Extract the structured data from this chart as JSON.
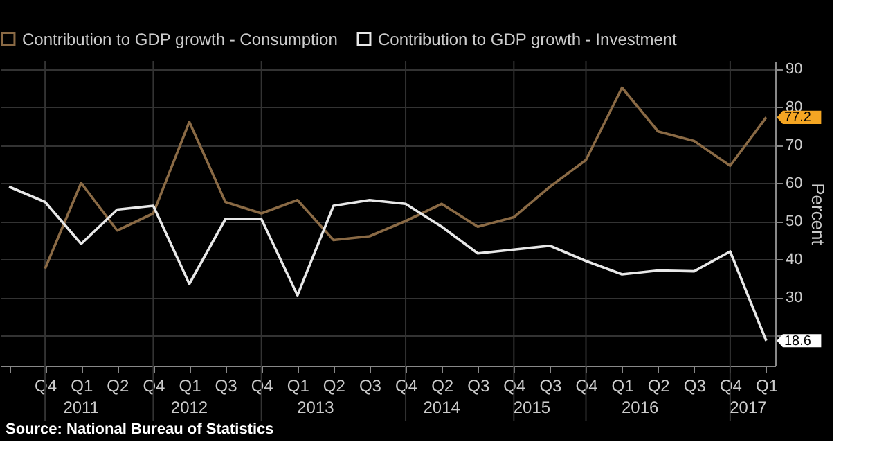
{
  "chart_data": {
    "type": "line",
    "categories": [
      null,
      "Q4",
      "Q1",
      "Q2",
      "Q4",
      "Q1",
      "Q3",
      "Q4",
      "Q1",
      "Q2",
      "Q3",
      "Q4",
      "Q2",
      "Q3",
      "Q4",
      "Q3",
      "Q4",
      "Q1",
      "Q2",
      "Q3",
      "Q4",
      "Q1"
    ],
    "series": [
      {
        "name": "Contribution to GDP growth - Consumption",
        "color": "#8a6a45",
        "values": [
          null,
          37.5,
          60,
          47.5,
          52,
          76,
          55,
          52,
          55.5,
          45,
          46,
          50,
          54.5,
          48.5,
          51,
          59,
          66,
          85,
          73.5,
          71,
          64.5,
          77.2
        ],
        "value_labels": [
          null,
          null,
          null,
          null,
          null,
          null,
          null,
          null,
          null,
          null,
          null,
          null,
          null,
          null,
          null,
          null,
          null,
          null,
          null,
          null,
          null,
          "77.2"
        ]
      },
      {
        "name": "Contribution to GDP growth - Investment",
        "color": "#e8e8e8",
        "values": [
          59,
          55,
          44,
          53,
          54,
          33.5,
          50.5,
          50.5,
          30.5,
          54,
          55.5,
          54.5,
          48.5,
          41.5,
          42.5,
          43.5,
          39.5,
          36,
          37,
          36.8,
          42,
          18.6
        ],
        "value_labels": [
          null,
          null,
          null,
          null,
          null,
          null,
          null,
          null,
          null,
          null,
          null,
          null,
          null,
          null,
          null,
          null,
          null,
          null,
          null,
          null,
          null,
          "18.6"
        ]
      }
    ],
    "ylabel": "Percent",
    "ylim": [
      12,
      92
    ],
    "yticks": [
      {
        "value": 20,
        "label": null
      },
      30,
      40,
      50,
      60,
      70,
      80,
      90
    ],
    "grid": true,
    "legend": "top left",
    "marker": "none",
    "line_style": "solid",
    "annotations": [
      "2011",
      "2012",
      "2013",
      "2014",
      "2015",
      "2016",
      "2017",
      "Source: National Bureau of Statistics"
    ]
  }
}
